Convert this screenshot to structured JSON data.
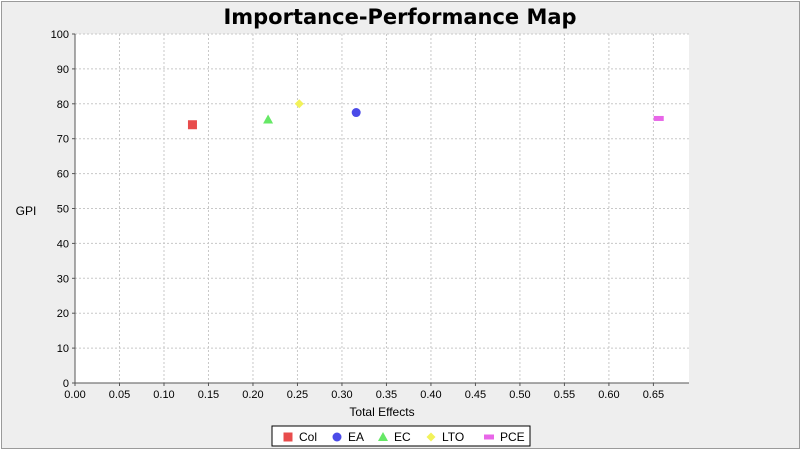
{
  "chart_data": {
    "type": "scatter",
    "title": "Importance-Performance Map",
    "xlabel": "Total Effects",
    "ylabel": "GPI",
    "xlim": [
      0.0,
      0.69
    ],
    "ylim": [
      0,
      100
    ],
    "x_ticks": [
      "0.00",
      "0.05",
      "0.10",
      "0.15",
      "0.20",
      "0.25",
      "0.30",
      "0.35",
      "0.40",
      "0.45",
      "0.50",
      "0.55",
      "0.60",
      "0.65"
    ],
    "y_ticks": [
      "0",
      "10",
      "20",
      "30",
      "40",
      "50",
      "60",
      "70",
      "80",
      "90",
      "100"
    ],
    "grid": true,
    "legend_position": "bottom",
    "series": [
      {
        "name": "Col",
        "marker": "square",
        "color": "#e84c4c",
        "points": [
          {
            "x": 0.132,
            "y": 74.0
          }
        ]
      },
      {
        "name": "EA",
        "marker": "circle",
        "color": "#4b4be8",
        "points": [
          {
            "x": 0.316,
            "y": 77.5
          }
        ]
      },
      {
        "name": "EC",
        "marker": "triangle",
        "color": "#66e866",
        "points": [
          {
            "x": 0.217,
            "y": 75.5
          }
        ]
      },
      {
        "name": "LTO",
        "marker": "diamond",
        "color": "#f2f25a",
        "points": [
          {
            "x": 0.252,
            "y": 80.0
          }
        ]
      },
      {
        "name": "PCE",
        "marker": "rect",
        "color": "#e866e8",
        "points": [
          {
            "x": 0.656,
            "y": 75.8
          }
        ]
      }
    ]
  }
}
